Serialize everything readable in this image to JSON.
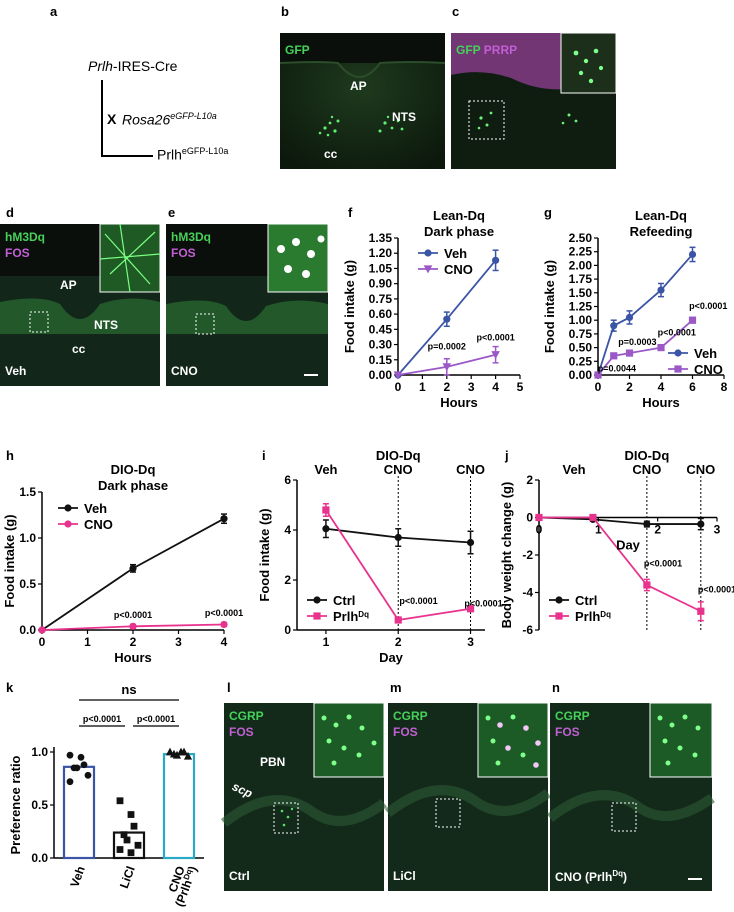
{
  "letters": {
    "a": "a",
    "b": "b",
    "c": "c",
    "d": "d",
    "e": "e",
    "f": "f",
    "g": "g",
    "h": "h",
    "i": "i",
    "j": "j",
    "k": "k",
    "l": "l",
    "m": "m",
    "n": "n"
  },
  "schema": {
    "line1_italic": "Prlh",
    "line1_rest": "-IRES-Cre",
    "cross": "X",
    "line2_italic": "Rosa26",
    "line2_sup": "eGFP-L10a",
    "line3": "Prlh",
    "line3_sup": "eGFP-L10a"
  },
  "micrographs": {
    "b": {
      "gfp": "GFP",
      "ap": "AP",
      "nts": "NTS",
      "cc": "cc"
    },
    "c": {
      "gfp": "GFP",
      "prrp": "PRRP"
    },
    "d": {
      "hm3dq": "hM3Dq",
      "fos": "FOS",
      "ap": "AP",
      "nts": "NTS",
      "cc": "cc",
      "cond": "Veh"
    },
    "e": {
      "hm3dq": "hM3Dq",
      "fos": "FOS",
      "cond": "CNO"
    },
    "l": {
      "cgrp": "CGRP",
      "fos": "FOS",
      "pbn": "PBN",
      "scp": "scp",
      "cond": "Ctrl"
    },
    "m": {
      "cgrp": "CGRP",
      "fos": "FOS",
      "cond": "LiCl"
    },
    "n": {
      "cgrp": "CGRP",
      "fos": "FOS",
      "cond": "CNO (Prlh",
      "cond_sup": "Dq",
      "cond_close": ")"
    }
  },
  "colors": {
    "blue": "#3b55a6",
    "purple": "#9b59c8",
    "black": "#111111",
    "magenta": "#e8338e",
    "cyan": "#29a9c6",
    "gfp": "#46d15a",
    "fos": "#c25fd4"
  },
  "chart_data": [
    {
      "id": "f",
      "type": "line",
      "title": [
        "Lean-Dq",
        "Dark phase"
      ],
      "xlabel": "Hours",
      "ylabel": "Food intake (g)",
      "xlim": [
        0,
        5
      ],
      "ylim": [
        0,
        1.35
      ],
      "xticks": [
        "0",
        "1",
        "2",
        "3",
        "4",
        "5"
      ],
      "yticks": [
        "0.00",
        "0.15",
        "0.30",
        "0.45",
        "0.60",
        "0.75",
        "0.90",
        "1.05",
        "1.20",
        "1.35"
      ],
      "legend_position": "top-left",
      "series": [
        {
          "name": "Veh",
          "color": "#3b55a6",
          "marker": "circle",
          "x": [
            0,
            2,
            4
          ],
          "y": [
            0,
            0.55,
            1.13
          ],
          "err": [
            0,
            0.07,
            0.1
          ]
        },
        {
          "name": "CNO",
          "color": "#9b59c8",
          "marker": "triangle-down",
          "x": [
            0,
            2,
            4
          ],
          "y": [
            0,
            0.08,
            0.2
          ],
          "err": [
            0,
            0.08,
            0.08
          ]
        }
      ],
      "annotations": [
        {
          "text": "p=0.0002",
          "x": 2,
          "y": 0.25
        },
        {
          "text": "p<0.0001",
          "x": 4,
          "y": 0.34
        }
      ]
    },
    {
      "id": "g",
      "type": "line",
      "title": [
        "Lean-Dq",
        "Refeeding"
      ],
      "xlabel": "Hours",
      "ylabel": "Food intake (g)",
      "xlim": [
        0,
        8
      ],
      "ylim": [
        0,
        2.5
      ],
      "xticks": [
        "0",
        "2",
        "4",
        "6",
        "8"
      ],
      "yticks": [
        "0.00",
        "0.25",
        "0.50",
        "0.75",
        "1.00",
        "1.25",
        "1.50",
        "1.75",
        "2.00",
        "2.25",
        "2.50"
      ],
      "legend_position": "bottom-right",
      "series": [
        {
          "name": "Veh",
          "color": "#3b55a6",
          "marker": "circle",
          "x": [
            0,
            1,
            2,
            4,
            6
          ],
          "y": [
            0,
            0.9,
            1.05,
            1.55,
            2.2
          ],
          "err": [
            0,
            0.1,
            0.12,
            0.12,
            0.13
          ]
        },
        {
          "name": "CNO",
          "color": "#9b59c8",
          "marker": "square",
          "x": [
            0,
            1,
            2,
            4,
            6
          ],
          "y": [
            0,
            0.35,
            0.4,
            0.5,
            1.0
          ],
          "err": [
            0,
            0.03,
            0.04,
            0.04,
            0.05
          ]
        }
      ],
      "annotations": [
        {
          "text": "p=0.0044",
          "x": 1.2,
          "y": 0.06
        },
        {
          "text": "p=0.0003",
          "x": 2.5,
          "y": 0.55
        },
        {
          "text": "p<0.0001",
          "x": 5.0,
          "y": 0.72
        },
        {
          "text": "p<0.0001",
          "x": 7.0,
          "y": 1.2
        }
      ]
    },
    {
      "id": "h",
      "type": "line",
      "title": [
        "DIO-Dq",
        "Dark phase"
      ],
      "xlabel": "Hours",
      "ylabel": "Food intake (g)",
      "xlim": [
        0,
        4
      ],
      "ylim": [
        0,
        1.5
      ],
      "xticks": [
        "0",
        "1",
        "2",
        "3",
        "4"
      ],
      "yticks": [
        "0.0",
        "0.5",
        "1.0",
        "1.5"
      ],
      "legend_position": "top-left",
      "series": [
        {
          "name": "Veh",
          "color": "#111111",
          "marker": "circle",
          "x": [
            0,
            2,
            4
          ],
          "y": [
            0,
            0.67,
            1.21
          ],
          "err": [
            0,
            0.04,
            0.05
          ]
        },
        {
          "name": "CNO",
          "color": "#e8338e",
          "marker": "circle",
          "x": [
            0,
            2,
            4
          ],
          "y": [
            0,
            0.04,
            0.06
          ],
          "err": [
            0,
            0.02,
            0.02
          ]
        }
      ],
      "annotations": [
        {
          "text": "p<0.0001",
          "x": 2,
          "y": 0.13
        },
        {
          "text": "p<0.0001",
          "x": 4,
          "y": 0.15
        }
      ]
    },
    {
      "id": "i",
      "type": "line",
      "title": [],
      "xlabel": "Day",
      "ylabel": "Food intake (g)",
      "xlim": [
        0.6,
        3.2
      ],
      "ylim": [
        0,
        6
      ],
      "xticks": [
        "1",
        "2",
        "3"
      ],
      "xtick_values": [
        1,
        2,
        3
      ],
      "yticks": [
        "0",
        "2",
        "4",
        "6"
      ],
      "legend_position": "bottom-left",
      "vlines": [
        2,
        3
      ],
      "top_labels": [
        {
          "text": "Veh",
          "x": 1
        },
        {
          "text": "DIO-Dq",
          "x": 2,
          "row": 0
        },
        {
          "text": "CNO",
          "x": 2,
          "row": 1
        },
        {
          "text": "CNO",
          "x": 3,
          "row": 1
        }
      ],
      "series": [
        {
          "name": "Ctrl",
          "color": "#111111",
          "marker": "circle",
          "x": [
            1,
            2,
            3
          ],
          "y": [
            4.05,
            3.7,
            3.5
          ],
          "err": [
            0.35,
            0.35,
            0.45
          ]
        },
        {
          "name": "Prlh",
          "name_sup": "Dq",
          "color": "#e8338e",
          "marker": "square",
          "x": [
            1,
            2,
            3
          ],
          "y": [
            4.8,
            0.4,
            0.85
          ],
          "err": [
            0.25,
            0.05,
            0.08
          ]
        }
      ],
      "annotations": [
        {
          "text": "p<0.0001",
          "x": 2.28,
          "y": 1.05
        },
        {
          "text": "p<0.0001",
          "x": 3.18,
          "y": 0.95
        }
      ]
    },
    {
      "id": "j",
      "type": "line",
      "title": [],
      "xlabel": "Day",
      "ylabel": "Body weight change (g)",
      "xlim": [
        0,
        3.3
      ],
      "ylim": [
        -6,
        2
      ],
      "xticks": [
        "0",
        "1",
        "2",
        "3"
      ],
      "yticks": [
        "-6",
        "-4",
        "-2",
        "0",
        "2"
      ],
      "legend_position": "bottom-left",
      "vlines": [
        2,
        3
      ],
      "top_labels": [
        {
          "text": "Veh",
          "x": 0.65
        },
        {
          "text": "DIO-Dq",
          "x": 2,
          "row": 0
        },
        {
          "text": "CNO",
          "x": 2,
          "row": 1
        },
        {
          "text": "CNO",
          "x": 3,
          "row": 1
        }
      ],
      "series": [
        {
          "name": "Ctrl",
          "color": "#111111",
          "marker": "circle",
          "x": [
            0,
            1,
            2,
            3
          ],
          "y": [
            0,
            -0.1,
            -0.35,
            -0.35
          ],
          "err": [
            0,
            0.1,
            0.15,
            0.3
          ]
        },
        {
          "name": "Prlh",
          "name_sup": "Dq",
          "color": "#e8338e",
          "marker": "square",
          "x": [
            0,
            1,
            2,
            3
          ],
          "y": [
            0,
            0,
            -3.6,
            -5.0
          ],
          "err": [
            0,
            0.1,
            0.3,
            0.5
          ]
        }
      ],
      "annotations": [
        {
          "text": "p<0.0001",
          "x": 2.3,
          "y": -2.6
        },
        {
          "text": "p<0.0001",
          "x": 3.3,
          "y": -4.0
        }
      ]
    },
    {
      "id": "k",
      "type": "bar",
      "xlabel": "",
      "ylabel": "Preference ratio",
      "ylim": [
        0,
        1
      ],
      "yticks": [
        "0.0",
        "0.5",
        "1.0"
      ],
      "categories": [
        "Veh",
        "LiCl",
        "CNO"
      ],
      "category_extra": {
        "CNO": "(Prlh",
        "CNO_sup": "Dq",
        "CNO_close": ")"
      },
      "values": [
        0.86,
        0.24,
        0.98
      ],
      "colors": [
        "#3b55a6",
        "#111111",
        "#29a9c6"
      ],
      "points": [
        [
          0.97,
          0.95,
          0.88,
          0.85,
          0.85,
          0.78,
          0.72
        ],
        [
          0.54,
          0.41,
          0.3,
          0.22,
          0.17,
          0.12,
          0.08,
          0.05
        ],
        [
          1.0,
          1.0,
          1.0,
          0.98,
          0.97,
          0.96
        ]
      ],
      "point_markers": [
        "circle",
        "square",
        "triangle"
      ],
      "significance": [
        {
          "text": "ns",
          "from": 0,
          "to": 2,
          "level": 2
        },
        {
          "text": "p<0.0001",
          "from": 0,
          "to": 1,
          "level": 1
        },
        {
          "text": "p<0.0001",
          "from": 1,
          "to": 2,
          "level": 1
        }
      ]
    }
  ]
}
